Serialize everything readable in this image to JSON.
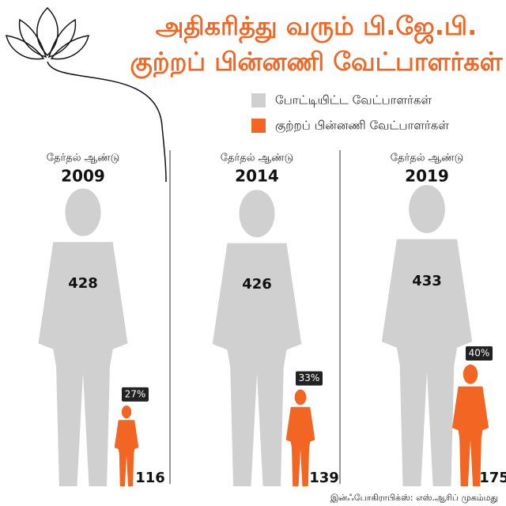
{
  "chart_data": {
    "type": "pictograph",
    "title": [
      "அதிகரித்து வரும் பி.ஜே.பி.",
      "குற்றப் பின்னணி வேட்பாளர்கள்"
    ],
    "category_label": "தேர்தல் ஆண்டு",
    "categories": [
      "2009",
      "2014",
      "2019"
    ],
    "series": [
      {
        "name": "போட்டியிட்ட வேட்பாளர்கள்",
        "color": "#d0d0d0",
        "values": [
          428,
          426,
          433
        ]
      },
      {
        "name": "குற்றப் பின்னணி வேட்பாளர்கள்",
        "color": "#f26522",
        "values": [
          116,
          139,
          175
        ],
        "shares": [
          27,
          33,
          40
        ],
        "share_labels": [
          "27%",
          "33%",
          "40%"
        ]
      }
    ],
    "credit": "இன்ஃபோகிராபிக்ஸ்: எஸ்.ஆரிப் முகம்மது"
  }
}
